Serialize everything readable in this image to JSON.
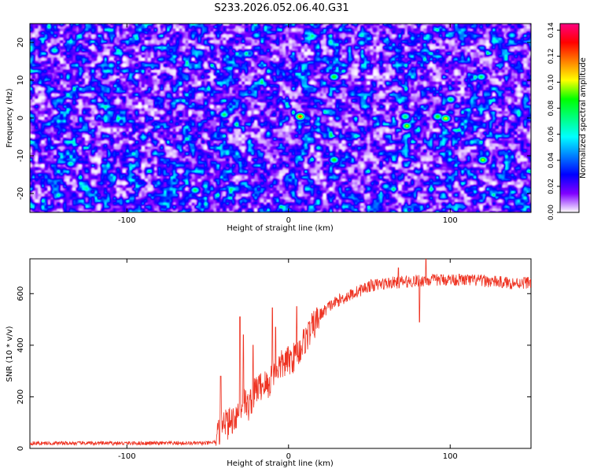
{
  "title": "S233.2026.052.06.40.G31",
  "chart_data": [
    {
      "type": "heatmap",
      "xlabel": "Height of straight line (km)",
      "ylabel": "Frequency (Hz)",
      "xlim": [
        -160,
        150
      ],
      "ylim": [
        -25,
        25
      ],
      "xticks": [
        -100,
        0,
        100
      ],
      "yticks": [
        -20,
        -10,
        0,
        10,
        20
      ],
      "colorbar": {
        "label": "Normalized spectral amplitude",
        "range": [
          0,
          0.145
        ],
        "ticks": [
          "0.00",
          "0.02",
          "0.04",
          "0.06",
          "0.08",
          "0.10",
          "0.12",
          "0.14"
        ],
        "colormap": [
          "#ffffff",
          "#8000ff",
          "#0000ff",
          "#0080ff",
          "#00ffff",
          "#00ff80",
          "#00ff00",
          "#ffff00",
          "#ff8000",
          "#ff0000",
          "#ff0080"
        ]
      },
      "background_level": 0.035,
      "peaks": [
        {
          "x": 7,
          "y": 0.5,
          "amp": 0.13
        },
        {
          "x": 97,
          "y": 0,
          "amp": 0.11
        },
        {
          "x": 73,
          "y": -2,
          "amp": 0.1
        },
        {
          "x": 120,
          "y": -11,
          "amp": 0.1
        },
        {
          "x": 28,
          "y": -11,
          "amp": 0.09
        },
        {
          "x": 28,
          "y": 11,
          "amp": 0.09
        },
        {
          "x": 92,
          "y": 0.5,
          "amp": 0.09
        },
        {
          "x": -40,
          "y": 1,
          "amp": 0.08
        },
        {
          "x": -58,
          "y": -19,
          "amp": 0.08
        },
        {
          "x": 119,
          "y": 11,
          "amp": 0.08
        },
        {
          "x": 72,
          "y": 0.5,
          "amp": 0.08
        },
        {
          "x": 100,
          "y": 5,
          "amp": 0.08
        },
        {
          "x": -145,
          "y": 18,
          "amp": 0.07
        },
        {
          "x": -135,
          "y": -12,
          "amp": 0.07
        },
        {
          "x": -110,
          "y": 14,
          "amp": 0.06
        },
        {
          "x": -90,
          "y": -5,
          "amp": 0.06
        },
        {
          "x": 45,
          "y": 20,
          "amp": 0.06
        },
        {
          "x": 60,
          "y": -18,
          "amp": 0.06
        },
        {
          "x": 138,
          "y": 22,
          "amp": 0.06
        },
        {
          "x": -20,
          "y": 22,
          "amp": 0.06
        }
      ]
    },
    {
      "type": "line",
      "series": [
        {
          "name": "SNR",
          "color": "#ee3322"
        }
      ],
      "xlabel": "Height of straight line (km)",
      "ylabel": "SNR (10 * v/v)",
      "xlim": [
        -160,
        150
      ],
      "ylim": [
        0,
        735
      ],
      "xticks": [
        -100,
        0,
        100
      ],
      "yticks": [
        0,
        200,
        400,
        600
      ],
      "x": [
        -160,
        -120,
        -80,
        -50,
        -45,
        -42,
        -40,
        -38,
        -35,
        -30,
        -28,
        -25,
        -20,
        -15,
        -12,
        -10,
        -5,
        0,
        5,
        10,
        15,
        20,
        25,
        30,
        40,
        50,
        60,
        80,
        100,
        120,
        140,
        150
      ],
      "values": [
        20,
        20,
        20,
        20,
        25,
        80,
        130,
        90,
        110,
        150,
        190,
        160,
        230,
        250,
        240,
        300,
        320,
        340,
        360,
        420,
        470,
        520,
        550,
        570,
        600,
        630,
        640,
        650,
        655,
        650,
        640,
        645
      ],
      "noise_amplitude": 30,
      "spikes": [
        {
          "x": -42,
          "y": 280
        },
        {
          "x": -30,
          "y": 510
        },
        {
          "x": -28,
          "y": 440
        },
        {
          "x": -22,
          "y": 400
        },
        {
          "x": -10,
          "y": 545
        },
        {
          "x": -8,
          "y": 470
        },
        {
          "x": 5,
          "y": 550
        },
        {
          "x": 85,
          "y": 735
        },
        {
          "x": 81,
          "y": 490
        },
        {
          "x": 68,
          "y": 700
        }
      ]
    }
  ]
}
